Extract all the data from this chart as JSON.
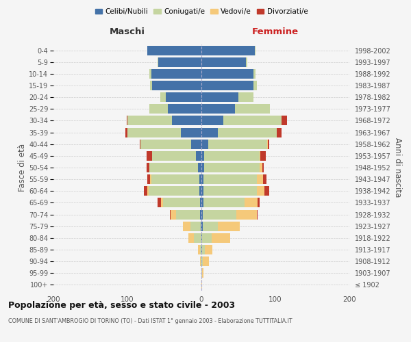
{
  "age_groups": [
    "100+",
    "95-99",
    "90-94",
    "85-89",
    "80-84",
    "75-79",
    "70-74",
    "65-69",
    "60-64",
    "55-59",
    "50-54",
    "45-49",
    "40-44",
    "35-39",
    "30-34",
    "25-29",
    "20-24",
    "15-19",
    "10-14",
    "5-9",
    "0-4"
  ],
  "birth_years": [
    "≤ 1902",
    "1903-1907",
    "1908-1912",
    "1913-1917",
    "1918-1922",
    "1923-1927",
    "1928-1932",
    "1933-1937",
    "1938-1942",
    "1943-1947",
    "1948-1952",
    "1953-1957",
    "1958-1962",
    "1963-1967",
    "1968-1972",
    "1973-1977",
    "1978-1982",
    "1983-1987",
    "1988-1992",
    "1993-1997",
    "1998-2002"
  ],
  "colors": {
    "celibi": "#4472a8",
    "coniugati": "#c5d5a0",
    "vedovi": "#f5c97a",
    "divorziati": "#c0392b"
  },
  "maschi": {
    "celibi": [
      0,
      0,
      0,
      0,
      0,
      1,
      2,
      2,
      3,
      3,
      5,
      7,
      14,
      28,
      40,
      45,
      48,
      67,
      68,
      58,
      73
    ],
    "coniugati": [
      0,
      0,
      1,
      2,
      10,
      14,
      32,
      50,
      68,
      65,
      65,
      60,
      68,
      72,
      60,
      25,
      8,
      2,
      2,
      1,
      0
    ],
    "vedovi": [
      0,
      0,
      1,
      3,
      8,
      10,
      8,
      3,
      2,
      1,
      0,
      0,
      0,
      0,
      0,
      0,
      0,
      0,
      0,
      0,
      0
    ],
    "divorziati": [
      0,
      0,
      0,
      0,
      0,
      0,
      1,
      4,
      5,
      4,
      4,
      7,
      1,
      3,
      1,
      0,
      0,
      0,
      0,
      0,
      0
    ]
  },
  "femmine": {
    "celibi": [
      0,
      0,
      0,
      1,
      1,
      2,
      2,
      3,
      3,
      3,
      4,
      4,
      9,
      22,
      30,
      45,
      50,
      70,
      70,
      60,
      72
    ],
    "coniugati": [
      0,
      1,
      2,
      4,
      13,
      20,
      45,
      55,
      72,
      72,
      75,
      75,
      80,
      80,
      78,
      48,
      20,
      5,
      3,
      2,
      1
    ],
    "vedovi": [
      1,
      2,
      8,
      10,
      25,
      30,
      28,
      18,
      10,
      8,
      3,
      1,
      1,
      0,
      0,
      0,
      0,
      0,
      0,
      0,
      0
    ],
    "divorziati": [
      0,
      0,
      0,
      0,
      0,
      0,
      1,
      3,
      7,
      5,
      2,
      7,
      2,
      6,
      8,
      0,
      0,
      0,
      0,
      0,
      0
    ]
  },
  "title": "Popolazione per età, sesso e stato civile - 2003",
  "subtitle": "COMUNE DI SANT'AMBROGIO DI TORINO (TO) - Dati ISTAT 1° gennaio 2003 - Elaborazione TUTTITALIA.IT",
  "ylabel_left": "Fasce di età",
  "ylabel_right": "Anni di nascita",
  "xlabel_left": "Maschi",
  "xlabel_right": "Femmine",
  "xlim": 200,
  "background_color": "#f5f5f5",
  "grid_color": "#cccccc",
  "legend_labels": [
    "Celibi/Nubili",
    "Coniugati/e",
    "Vedovi/e",
    "Divorziati/e"
  ]
}
